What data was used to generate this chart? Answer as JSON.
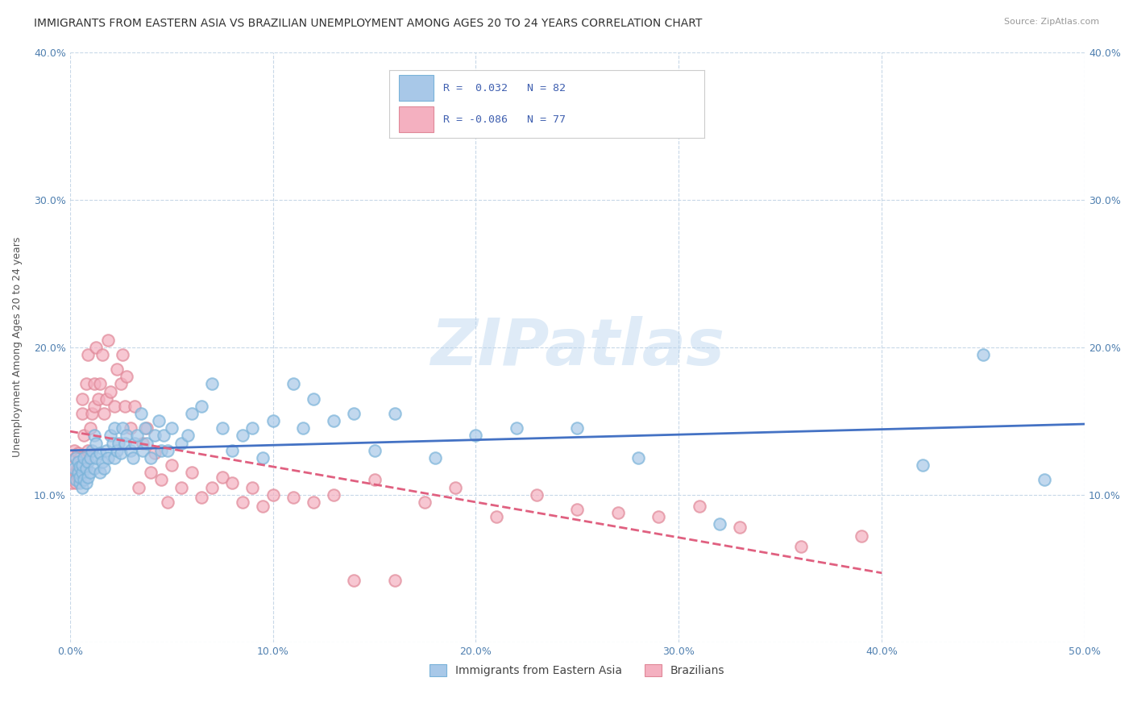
{
  "title": "IMMIGRANTS FROM EASTERN ASIA VS BRAZILIAN UNEMPLOYMENT AMONG AGES 20 TO 24 YEARS CORRELATION CHART",
  "source": "Source: ZipAtlas.com",
  "ylabel": "Unemployment Among Ages 20 to 24 years",
  "xlim": [
    0,
    0.5
  ],
  "ylim": [
    0,
    0.4
  ],
  "xticks": [
    0.0,
    0.1,
    0.2,
    0.3,
    0.4,
    0.5
  ],
  "yticks": [
    0.0,
    0.1,
    0.2,
    0.3,
    0.4
  ],
  "xtick_labels": [
    "0.0%",
    "10.0%",
    "20.0%",
    "30.0%",
    "40.0%",
    "50.0%"
  ],
  "ytick_labels": [
    "",
    "10.0%",
    "20.0%",
    "30.0%",
    "40.0%"
  ],
  "blue_face_color": "#a8c8e8",
  "blue_edge_color": "#7ab3d9",
  "pink_face_color": "#f4b0c0",
  "pink_edge_color": "#e08898",
  "blue_line_color": "#4472c4",
  "pink_line_color": "#e06080",
  "watermark": "ZIPatlas",
  "title_fontsize": 10,
  "axis_fontsize": 9,
  "tick_fontsize": 9,
  "background_color": "#ffffff",
  "grid_color": "#c8d8e8",
  "tick_color": "#5080b0",
  "legend_line1": "R =  0.032   N = 82",
  "legend_line2": "R = -0.086   N = 77",
  "legend_label_blue": "Immigrants from Eastern Asia",
  "legend_label_pink": "Brazilians",
  "blue_x": [
    0.002,
    0.003,
    0.003,
    0.004,
    0.004,
    0.005,
    0.005,
    0.005,
    0.006,
    0.006,
    0.006,
    0.007,
    0.007,
    0.008,
    0.008,
    0.009,
    0.009,
    0.01,
    0.01,
    0.011,
    0.012,
    0.012,
    0.013,
    0.013,
    0.015,
    0.015,
    0.016,
    0.017,
    0.018,
    0.019,
    0.02,
    0.021,
    0.022,
    0.022,
    0.023,
    0.024,
    0.025,
    0.026,
    0.027,
    0.028,
    0.03,
    0.031,
    0.032,
    0.033,
    0.035,
    0.036,
    0.037,
    0.038,
    0.04,
    0.042,
    0.044,
    0.045,
    0.046,
    0.048,
    0.05,
    0.055,
    0.058,
    0.06,
    0.065,
    0.07,
    0.075,
    0.08,
    0.085,
    0.09,
    0.095,
    0.1,
    0.11,
    0.115,
    0.12,
    0.13,
    0.14,
    0.15,
    0.16,
    0.18,
    0.2,
    0.22,
    0.25,
    0.28,
    0.32,
    0.42,
    0.45,
    0.48
  ],
  "blue_y": [
    0.118,
    0.125,
    0.11,
    0.115,
    0.122,
    0.108,
    0.112,
    0.119,
    0.105,
    0.115,
    0.12,
    0.11,
    0.125,
    0.108,
    0.118,
    0.112,
    0.122,
    0.115,
    0.125,
    0.13,
    0.118,
    0.14,
    0.125,
    0.135,
    0.128,
    0.115,
    0.122,
    0.118,
    0.13,
    0.125,
    0.14,
    0.135,
    0.125,
    0.145,
    0.13,
    0.135,
    0.128,
    0.145,
    0.135,
    0.14,
    0.13,
    0.125,
    0.135,
    0.14,
    0.155,
    0.13,
    0.145,
    0.135,
    0.125,
    0.14,
    0.15,
    0.13,
    0.14,
    0.13,
    0.145,
    0.135,
    0.14,
    0.155,
    0.16,
    0.175,
    0.145,
    0.13,
    0.14,
    0.145,
    0.125,
    0.15,
    0.175,
    0.145,
    0.165,
    0.15,
    0.155,
    0.13,
    0.155,
    0.125,
    0.14,
    0.145,
    0.145,
    0.125,
    0.08,
    0.12,
    0.195,
    0.11
  ],
  "pink_x": [
    0.001,
    0.001,
    0.002,
    0.002,
    0.002,
    0.003,
    0.003,
    0.003,
    0.004,
    0.004,
    0.004,
    0.005,
    0.005,
    0.005,
    0.006,
    0.006,
    0.007,
    0.007,
    0.008,
    0.008,
    0.009,
    0.009,
    0.01,
    0.011,
    0.012,
    0.012,
    0.013,
    0.014,
    0.015,
    0.016,
    0.017,
    0.018,
    0.019,
    0.02,
    0.022,
    0.023,
    0.025,
    0.026,
    0.027,
    0.028,
    0.03,
    0.032,
    0.034,
    0.036,
    0.038,
    0.04,
    0.042,
    0.045,
    0.048,
    0.05,
    0.055,
    0.06,
    0.065,
    0.07,
    0.075,
    0.08,
    0.085,
    0.09,
    0.095,
    0.1,
    0.11,
    0.12,
    0.13,
    0.14,
    0.15,
    0.16,
    0.175,
    0.19,
    0.21,
    0.23,
    0.25,
    0.27,
    0.29,
    0.31,
    0.33,
    0.36,
    0.39
  ],
  "pink_y": [
    0.108,
    0.115,
    0.112,
    0.12,
    0.13,
    0.108,
    0.115,
    0.125,
    0.112,
    0.118,
    0.128,
    0.115,
    0.12,
    0.125,
    0.155,
    0.165,
    0.118,
    0.14,
    0.125,
    0.175,
    0.13,
    0.195,
    0.145,
    0.155,
    0.16,
    0.175,
    0.2,
    0.165,
    0.175,
    0.195,
    0.155,
    0.165,
    0.205,
    0.17,
    0.16,
    0.185,
    0.175,
    0.195,
    0.16,
    0.18,
    0.145,
    0.16,
    0.105,
    0.135,
    0.145,
    0.115,
    0.128,
    0.11,
    0.095,
    0.12,
    0.105,
    0.115,
    0.098,
    0.105,
    0.112,
    0.108,
    0.095,
    0.105,
    0.092,
    0.1,
    0.098,
    0.095,
    0.1,
    0.042,
    0.11,
    0.042,
    0.095,
    0.105,
    0.085,
    0.1,
    0.09,
    0.088,
    0.085,
    0.092,
    0.078,
    0.065,
    0.072
  ]
}
